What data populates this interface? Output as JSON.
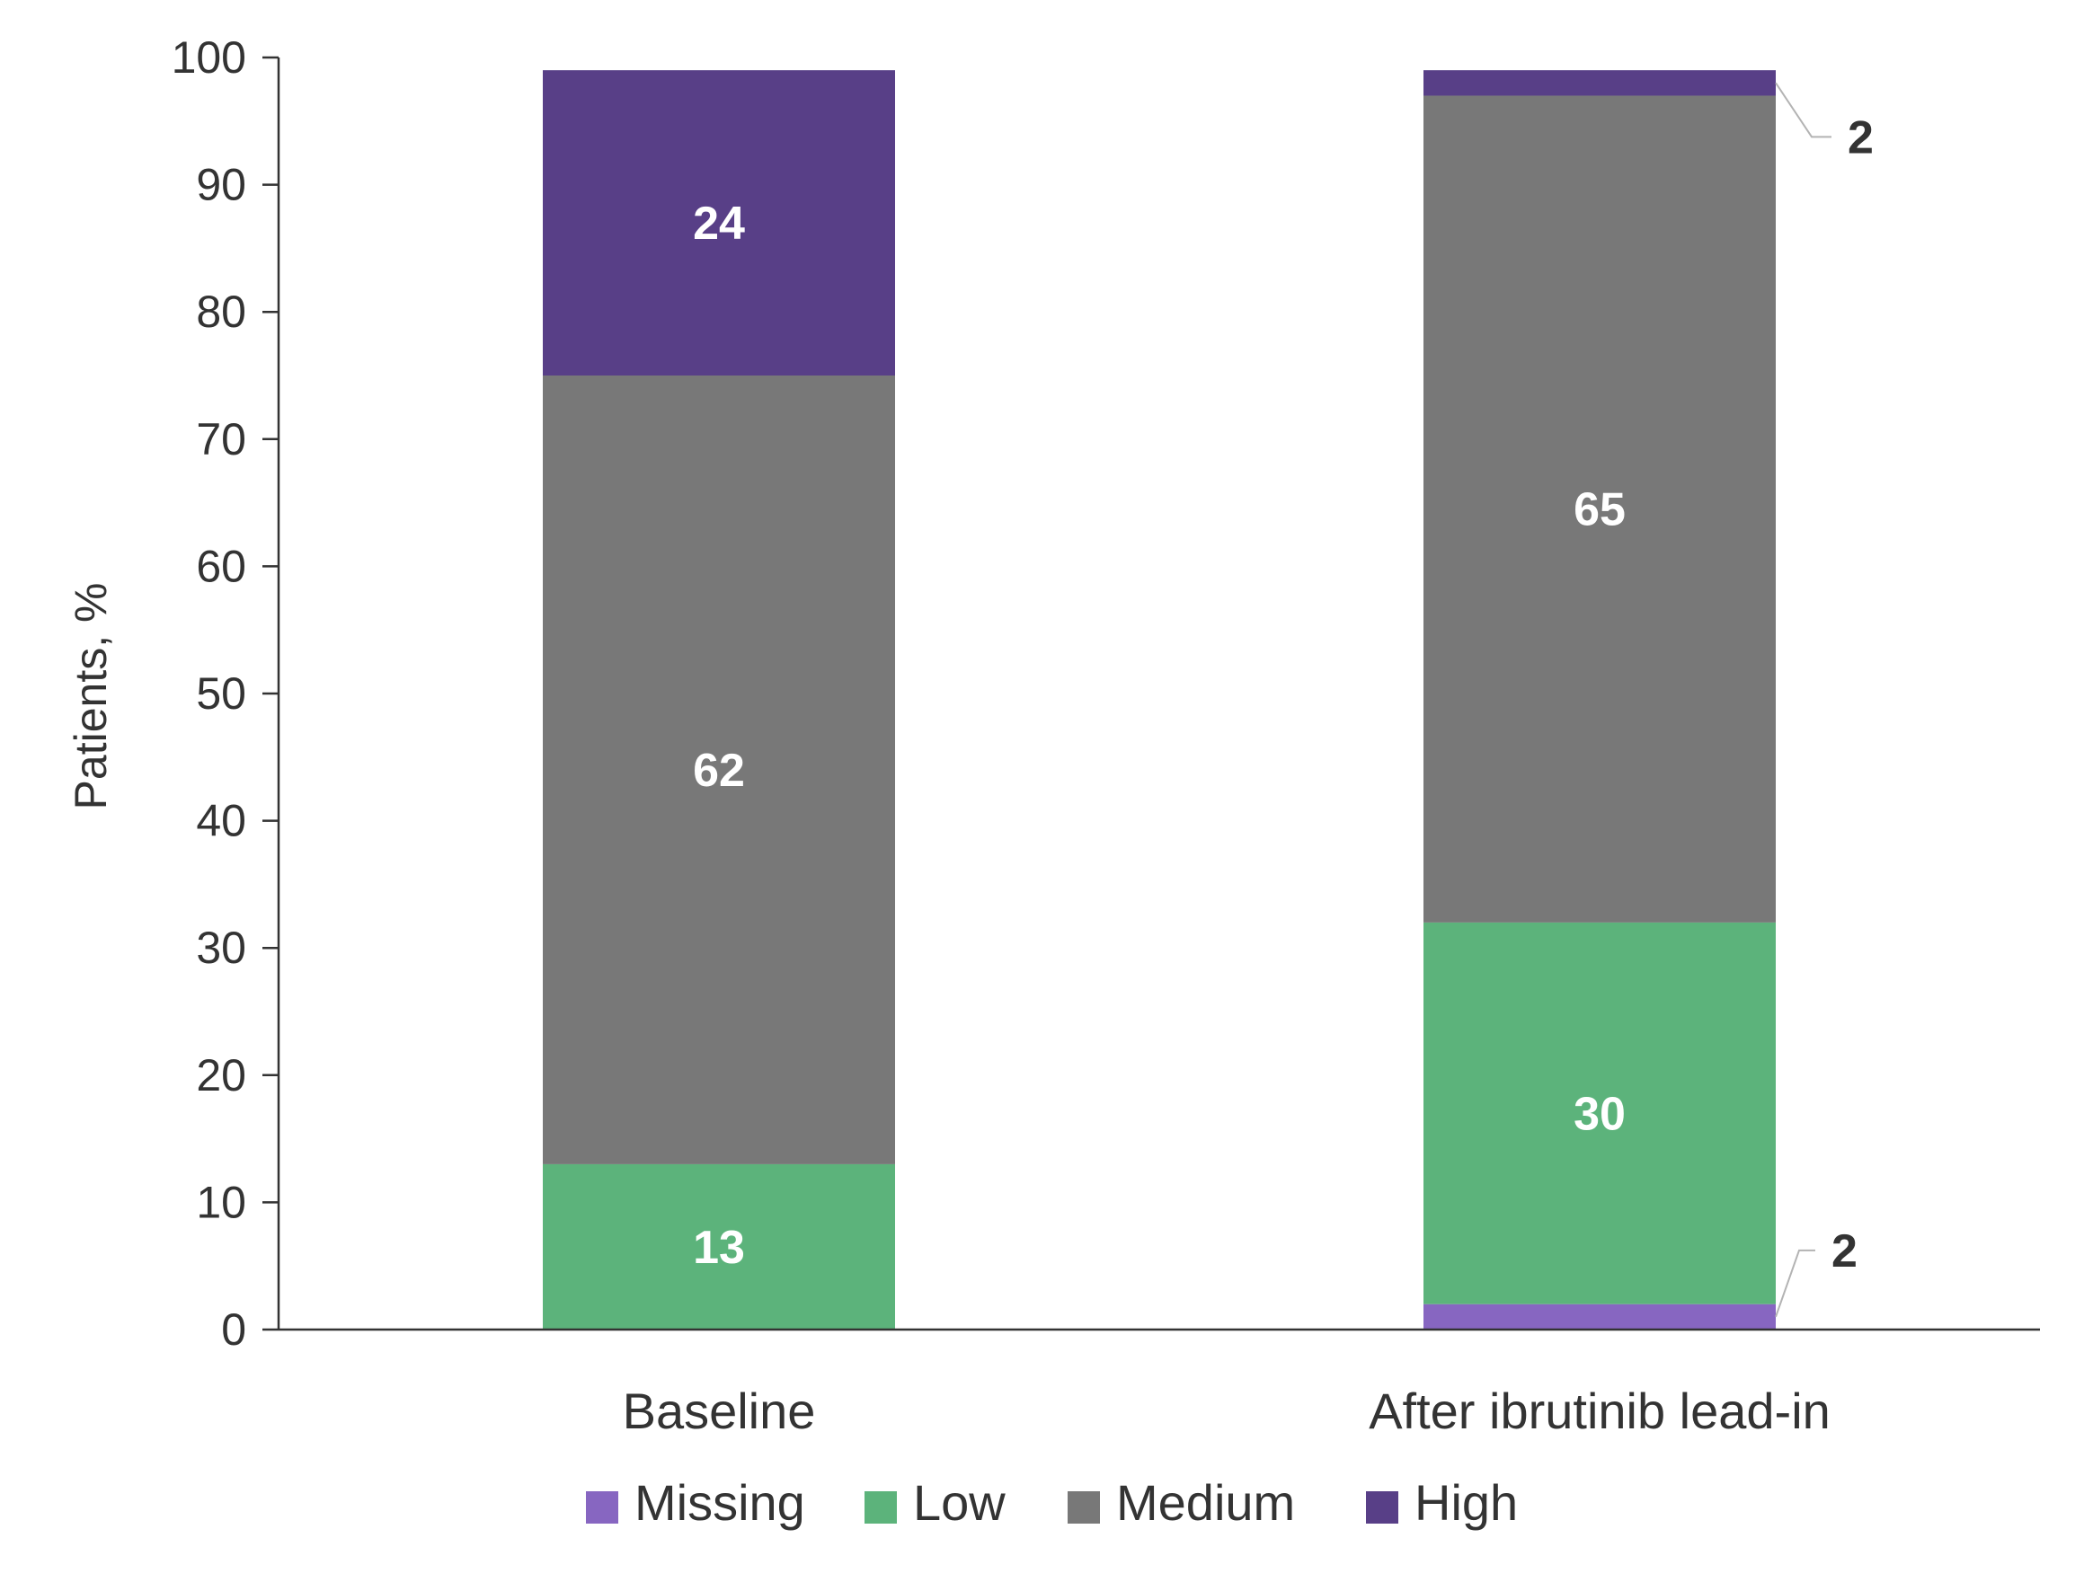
{
  "chart_data": {
    "type": "bar",
    "stacked": true,
    "categories": [
      "Baseline",
      "After ibrutinib lead-in"
    ],
    "series": [
      {
        "name": "Missing",
        "values": [
          0,
          2
        ],
        "color": "#8766c1"
      },
      {
        "name": "Low",
        "values": [
          13,
          30
        ],
        "color": "#5cb37b"
      },
      {
        "name": "Medium",
        "values": [
          62,
          65
        ],
        "color": "#787878"
      },
      {
        "name": "High",
        "values": [
          24,
          2
        ],
        "color": "#583f87"
      }
    ],
    "data_labels": [
      {
        "category": 0,
        "series": 1,
        "text": "13"
      },
      {
        "category": 0,
        "series": 2,
        "text": "62"
      },
      {
        "category": 0,
        "series": 3,
        "text": "24"
      },
      {
        "category": 1,
        "series": 0,
        "text": "2",
        "callout": true
      },
      {
        "category": 1,
        "series": 1,
        "text": "30"
      },
      {
        "category": 1,
        "series": 2,
        "text": "65"
      },
      {
        "category": 1,
        "series": 3,
        "text": "2",
        "callout": true
      }
    ],
    "ylabel": "Patients, %",
    "ylim": [
      0,
      100
    ],
    "yticks": [
      "0",
      "10",
      "20",
      "30",
      "40",
      "50",
      "60",
      "70",
      "80",
      "90",
      "100"
    ],
    "grid": false,
    "legend": "bottom",
    "axis_color": "#333333",
    "callout_line_color": "#b3b3b3",
    "inner_label_color": "#ffffff",
    "callout_label_color": "#333333"
  }
}
